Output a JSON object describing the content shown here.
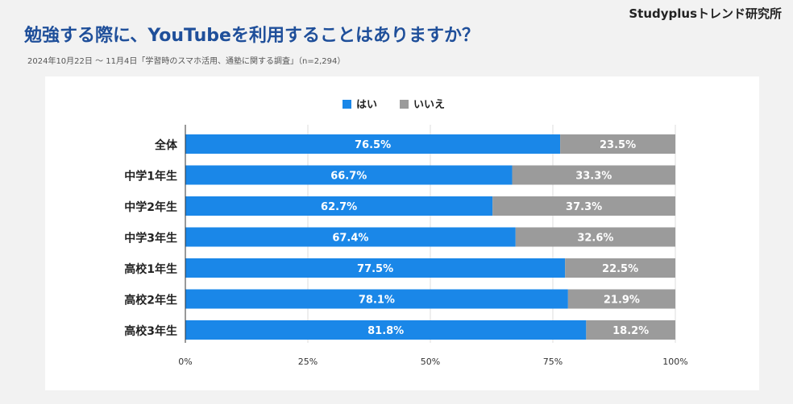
{
  "brand": "Studyplusトレンド研究所",
  "title": "勉強する際に、YouTubeを利用することはありますか？",
  "subtitle": "2024年10月22日 〜 11月4日「学習時のスマホ活用、通塾に関する調査」（n=2,294）",
  "colors": {
    "yes": "#1a87e8",
    "no": "#9b9b9b",
    "title": "#1f4f9a"
  },
  "chart_data": {
    "type": "bar",
    "orientation": "horizontal",
    "stacked": true,
    "categories": [
      "全体",
      "中学1年生",
      "中学2年生",
      "中学3年生",
      "高校1年生",
      "高校2年生",
      "高校3年生"
    ],
    "series": [
      {
        "name": "はい",
        "values": [
          76.5,
          66.7,
          62.7,
          67.4,
          77.5,
          78.1,
          81.8
        ]
      },
      {
        "name": "いいえ",
        "values": [
          23.5,
          33.3,
          37.3,
          32.6,
          22.5,
          21.9,
          18.2
        ]
      }
    ],
    "xlim": [
      0,
      100
    ],
    "xticks": [
      "0%",
      "25%",
      "50%",
      "75%",
      "100%"
    ],
    "unit": "%",
    "legend_position": "top-center",
    "grid": true
  }
}
